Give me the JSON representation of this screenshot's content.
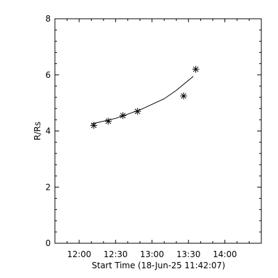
{
  "chart_data": {
    "type": "scatter",
    "title": "",
    "xlabel": "Start Time (18-Jun-25 11:42:07)",
    "ylabel": "R/Rs",
    "x_unit": "time of day",
    "xlim": [
      "11:40",
      "14:30"
    ],
    "ylim": [
      0,
      8
    ],
    "x_ticks": [
      "12:00",
      "12:30",
      "13:00",
      "13:30",
      "14:00"
    ],
    "y_ticks": [
      0,
      2,
      4,
      6,
      8
    ],
    "grid": false,
    "legend": "none",
    "series": [
      {
        "marker": "asterisk",
        "x": [
          "12:12",
          "12:24",
          "12:36",
          "12:48",
          "13:26",
          "13:36"
        ],
        "y": [
          4.2,
          4.35,
          4.55,
          4.7,
          5.25,
          6.2
        ]
      }
    ],
    "fit_curve": {
      "type": "line",
      "x": [
        "12:10",
        "12:30",
        "12:50",
        "13:10",
        "13:20",
        "13:34"
      ],
      "y": [
        4.25,
        4.45,
        4.75,
        5.15,
        5.45,
        5.95
      ]
    },
    "colors": {
      "background": "#ffffff",
      "foreground": "#000000"
    }
  }
}
